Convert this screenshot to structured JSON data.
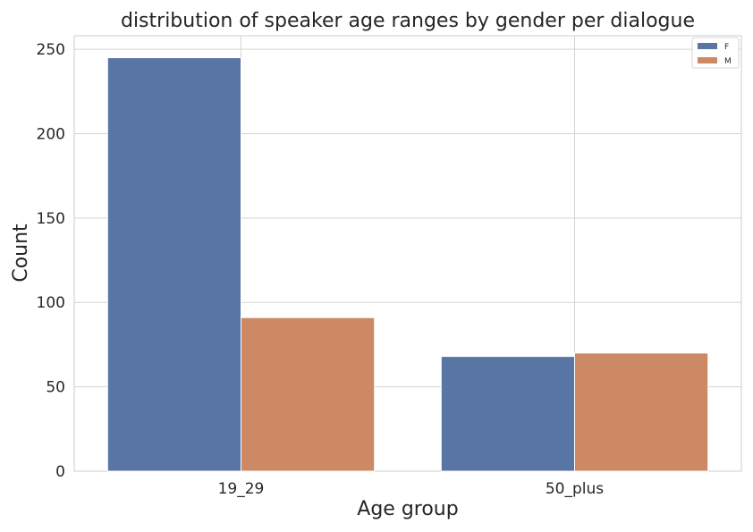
{
  "chart_data": {
    "type": "bar",
    "title": "distribution of speaker age ranges by gender per dialogue",
    "xlabel": "Age group",
    "ylabel": "Count",
    "categories": [
      "19_29",
      "50_plus"
    ],
    "series": [
      {
        "name": "F",
        "values": [
          245,
          68
        ],
        "color": "#5975a4"
      },
      {
        "name": "M",
        "values": [
          91,
          70
        ],
        "color": "#cc8963"
      }
    ],
    "ylim": [
      0,
      258
    ],
    "yticks": [
      0,
      50,
      100,
      150,
      200,
      250
    ],
    "grid": true,
    "legend_position": "top-right"
  }
}
